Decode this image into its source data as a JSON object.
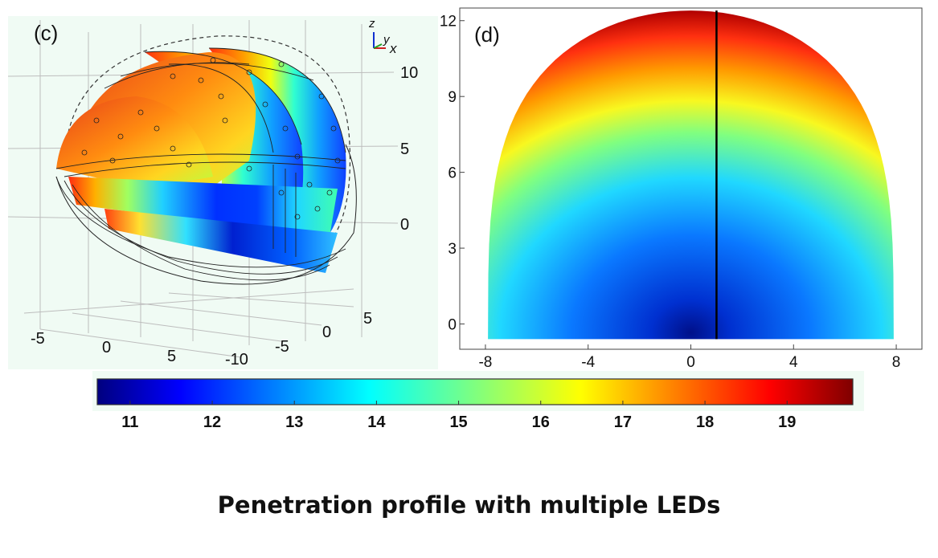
{
  "figure": {
    "title": "Penetration profile with multiple LEDs"
  },
  "chart_data": [
    {
      "type": "heatmap",
      "panel_label": "(c)",
      "view": "3D slice plot",
      "axis_triad": [
        "z",
        "y",
        "x"
      ],
      "z_ticks": [
        "10",
        "5",
        "0"
      ],
      "y_ticks": [
        "5",
        "0",
        "-5",
        "-10"
      ],
      "x_ticks": [
        "-5",
        "0",
        "5"
      ],
      "colormap": "jet"
    },
    {
      "type": "heatmap",
      "panel_label": "(d)",
      "xlim": [
        -9,
        9
      ],
      "ylim": [
        -1,
        12.5
      ],
      "x_ticks": [
        -8,
        -4,
        0,
        4,
        8
      ],
      "y_ticks": [
        0,
        3,
        6,
        9,
        12
      ],
      "shape": "dome-shaped cross-section, high values at outer boundary, low values at lower center",
      "vertical_line_x": 1,
      "value_range": [
        10.6,
        19.8
      ],
      "colormap": "jet"
    }
  ],
  "colorbar": {
    "ticks": [
      11,
      12,
      13,
      14,
      15,
      16,
      17,
      18,
      19
    ],
    "min": 10.6,
    "max": 19.8,
    "colormap": "jet"
  },
  "colors": {
    "jet_low": "#00007f",
    "jet_mid": "#7fff7f",
    "jet_high": "#7f0000",
    "panel_c_background": "#f0fbf4"
  }
}
